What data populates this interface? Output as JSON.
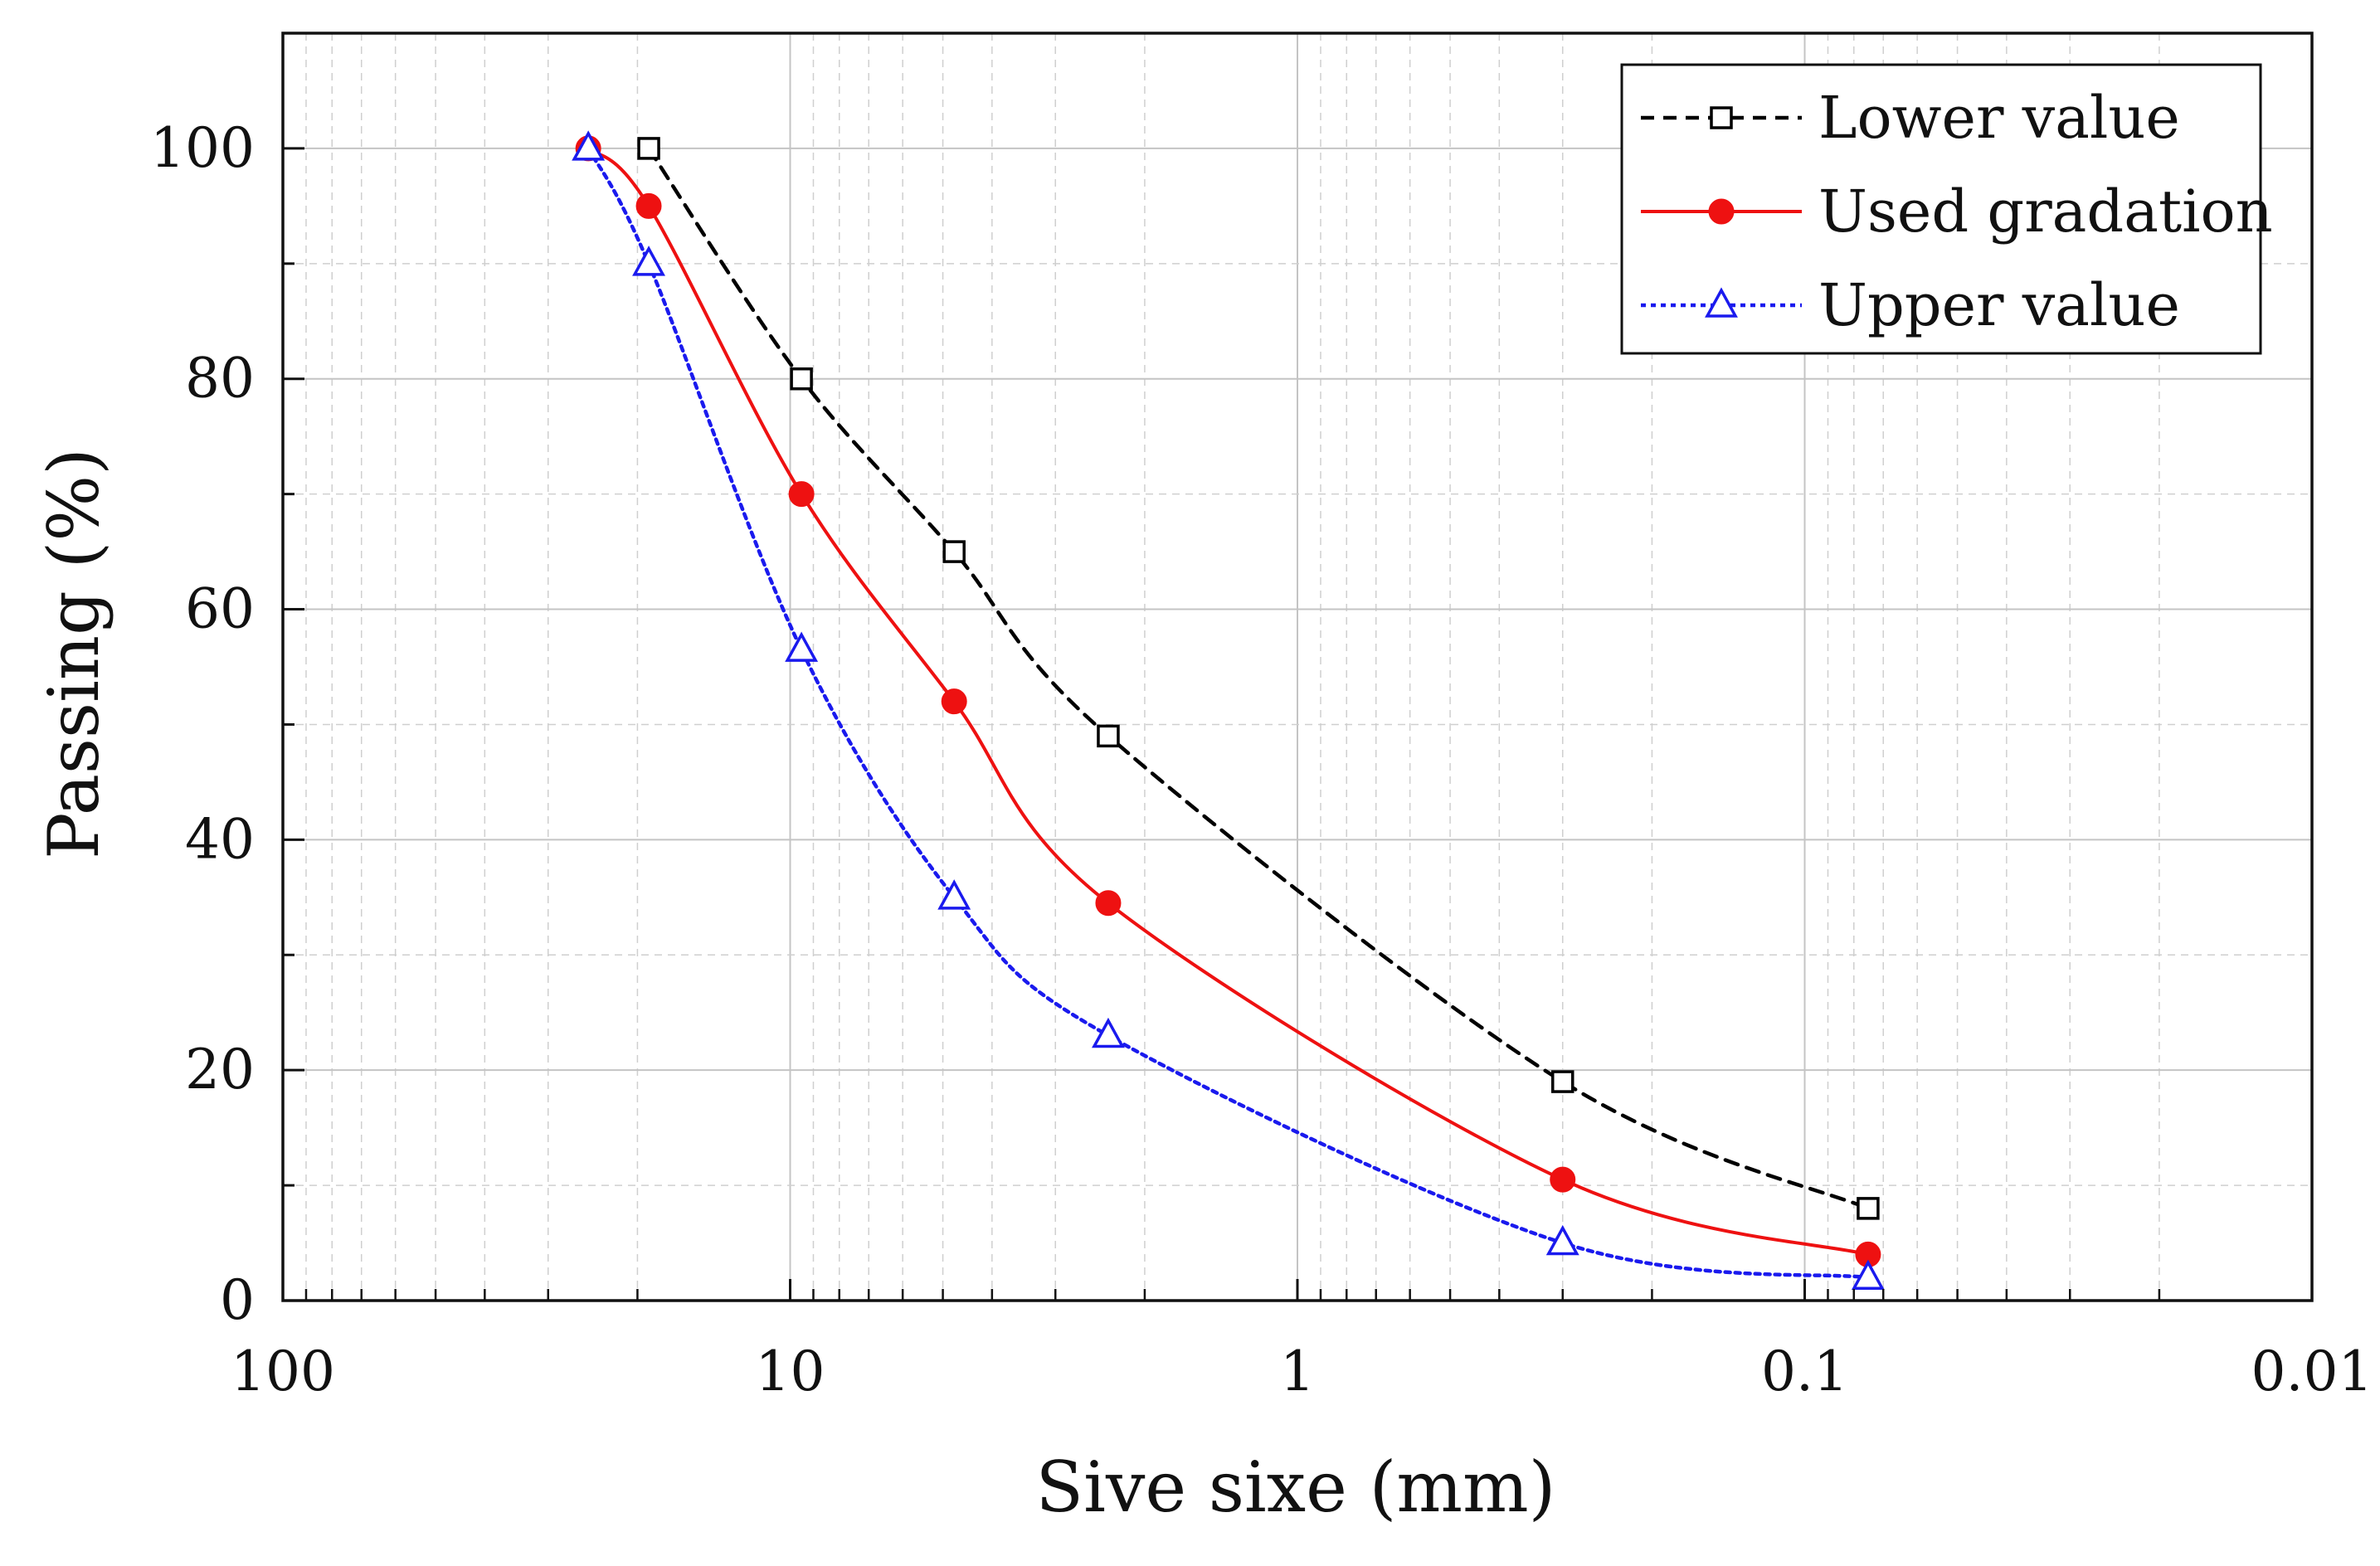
{
  "chart_data": {
    "type": "line",
    "title": "",
    "xlabel": "Sive sixe (mm)",
    "ylabel": "Passing (%)",
    "x_scale": "log",
    "x_reversed": true,
    "xlim": [
      100,
      0.01
    ],
    "ylim": [
      0,
      110
    ],
    "x_ticks": [
      {
        "value": 100,
        "label": "100"
      },
      {
        "value": 10,
        "label": "10"
      },
      {
        "value": 1,
        "label": "1"
      },
      {
        "value": 0.1,
        "label": "0.1"
      },
      {
        "value": 0.01,
        "label": "0.01"
      }
    ],
    "y_ticks": [
      {
        "value": 0,
        "label": "0"
      },
      {
        "value": 20,
        "label": "20"
      },
      {
        "value": 40,
        "label": "40"
      },
      {
        "value": 60,
        "label": "60"
      },
      {
        "value": 80,
        "label": "80"
      },
      {
        "value": 100,
        "label": "100"
      }
    ],
    "grid": true,
    "legend_position": "top-right",
    "series": [
      {
        "name": "Lower value",
        "color": "#000000",
        "line_style": "dashed",
        "marker": "open-square",
        "x": [
          19.0,
          9.5,
          4.75,
          2.36,
          0.3,
          0.075
        ],
        "y": [
          100,
          80,
          65,
          49,
          19,
          8
        ]
      },
      {
        "name": "Used gradation",
        "color": "#ee1111",
        "line_style": "solid",
        "marker": "filled-circle",
        "x": [
          25.0,
          19.0,
          9.5,
          4.75,
          2.36,
          0.3,
          0.075
        ],
        "y": [
          100,
          95,
          70,
          52,
          34.5,
          10.5,
          4
        ]
      },
      {
        "name": "Upper value",
        "color": "#1a1aee",
        "line_style": "dotted",
        "marker": "open-triangle",
        "x": [
          25.0,
          19.0,
          9.5,
          4.75,
          2.36,
          0.3,
          0.075
        ],
        "y": [
          100,
          90,
          56.5,
          35,
          23,
          5,
          2
        ]
      }
    ]
  }
}
